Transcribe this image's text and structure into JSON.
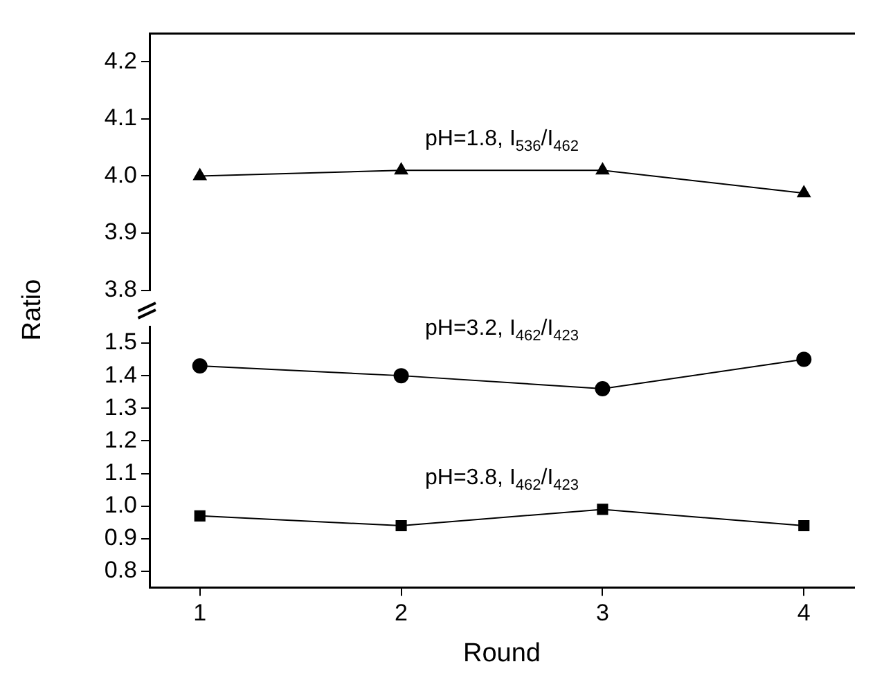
{
  "chart_data": [
    {
      "type": "line",
      "ylabel": "Ratio",
      "x": [
        1,
        2,
        3,
        4
      ],
      "xlim": [
        0.75,
        4.25
      ],
      "ylim": [
        3.8,
        4.25
      ],
      "yticks": [
        3.8,
        3.9,
        {
          "value": 4,
          "label": "4.0"
        },
        4.1,
        4.2
      ],
      "tick_labels": "y",
      "marker": "triangle",
      "series": [
        {
          "color": "#000000",
          "values": [
            4.0,
            4.01,
            4.01,
            3.97
          ]
        }
      ],
      "annotations": [
        "pH=1.8, I$_{536}$/I$_{462}$"
      ]
    },
    {
      "type": "line",
      "xlabel": "Round",
      "x": [
        1,
        2,
        3,
        4
      ],
      "xlim": [
        0.75,
        4.25
      ],
      "xticks": [
        1,
        2,
        3,
        4
      ],
      "ylim": [
        0.75,
        1.55
      ],
      "yticks": [
        0.8,
        0.9,
        {
          "value": 1,
          "label": "1.0"
        },
        1.1,
        1.2,
        1.3,
        1.4,
        1.5
      ],
      "series": [
        {
          "color": "#000000",
          "values": [
            1.43,
            1.4,
            1.36,
            1.45
          ],
          "marker": "circle"
        },
        {
          "color": "#000000",
          "values": [
            0.97,
            0.94,
            0.99,
            0.94
          ],
          "marker": "square"
        }
      ],
      "annotations": [
        "pH=3.2, I$_{462}$/I$_{423}$",
        "pH=3.8, I$_{462}$/I$_{423}$"
      ]
    }
  ]
}
